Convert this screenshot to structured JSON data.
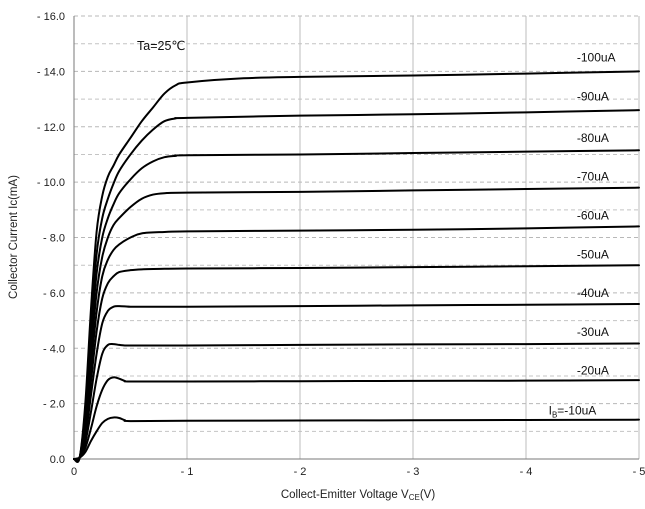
{
  "chart_data": {
    "type": "line",
    "annotation": "Ta=25℃",
    "xlabel": {
      "main": "Collect-Emitter Voltage  V",
      "sub": "CE",
      "tail": "(V)"
    },
    "ylabel": "Collector Current  Ic(mA)",
    "xlim": [
      0,
      -5
    ],
    "ylim": [
      0,
      -16
    ],
    "xticks": [
      {
        "v": 0,
        "label": "0"
      },
      {
        "v": -1,
        "label": "- 1"
      },
      {
        "v": -2,
        "label": "- 2"
      },
      {
        "v": -3,
        "label": "- 3"
      },
      {
        "v": -4,
        "label": "- 4"
      },
      {
        "v": -5,
        "label": "- 5"
      }
    ],
    "yticks": [
      {
        "v": 0,
        "label": "0.0"
      },
      {
        "v": -2,
        "label": "- 2.0"
      },
      {
        "v": -4,
        "label": "- 4.0"
      },
      {
        "v": -6,
        "label": "- 6.0"
      },
      {
        "v": -8,
        "label": "- 8.0"
      },
      {
        "v": -10,
        "label": "- 10.0"
      },
      {
        "v": -12,
        "label": "- 12.0"
      },
      {
        "v": -14,
        "label": "- 14.0"
      },
      {
        "v": -16,
        "label": "- 16.0"
      }
    ],
    "grid": {
      "vertical": "solid",
      "horizontal": "dashed-every-1.0"
    },
    "line_color": "#000000",
    "series": [
      {
        "name": "I_B=-10uA",
        "label_main": "I",
        "label_sub": "B",
        "label_tail": "=-10uA",
        "x": [
          0,
          -0.05,
          -0.1,
          -0.15,
          -0.2,
          -0.25,
          -0.3,
          -0.35,
          -0.4,
          -0.45,
          -0.5,
          -1,
          -2,
          -3,
          -4,
          -5
        ],
        "y": [
          0,
          -0.05,
          -0.25,
          -0.65,
          -1.0,
          -1.3,
          -1.45,
          -1.5,
          -1.48,
          -1.4,
          -1.37,
          -1.38,
          -1.39,
          -1.4,
          -1.41,
          -1.42
        ]
      },
      {
        "name": "-20uA",
        "x": [
          0,
          -0.05,
          -0.1,
          -0.15,
          -0.2,
          -0.25,
          -0.3,
          -0.35,
          -0.4,
          -0.45,
          -0.5,
          -1,
          -2,
          -3,
          -4,
          -5
        ],
        "y": [
          0,
          -0.05,
          -0.4,
          -1.1,
          -1.9,
          -2.5,
          -2.85,
          -2.95,
          -2.9,
          -2.82,
          -2.8,
          -2.8,
          -2.81,
          -2.82,
          -2.83,
          -2.85
        ]
      },
      {
        "name": "-30uA",
        "x": [
          0,
          -0.05,
          -0.1,
          -0.15,
          -0.2,
          -0.25,
          -0.3,
          -0.35,
          -0.4,
          -0.45,
          -0.5,
          -1,
          -2,
          -3,
          -4,
          -5
        ],
        "y": [
          0,
          -0.05,
          -0.6,
          -1.7,
          -2.9,
          -3.8,
          -4.12,
          -4.15,
          -4.12,
          -4.1,
          -4.1,
          -4.1,
          -4.12,
          -4.14,
          -4.15,
          -4.17
        ]
      },
      {
        "name": "-40uA",
        "x": [
          0,
          -0.05,
          -0.1,
          -0.15,
          -0.2,
          -0.25,
          -0.3,
          -0.35,
          -0.4,
          -0.5,
          -0.6,
          -0.8,
          -1,
          -2,
          -3,
          -4,
          -5
        ],
        "y": [
          0,
          -0.05,
          -0.8,
          -2.3,
          -3.8,
          -4.9,
          -5.35,
          -5.5,
          -5.52,
          -5.5,
          -5.5,
          -5.5,
          -5.5,
          -5.52,
          -5.55,
          -5.57,
          -5.6
        ]
      },
      {
        "name": "-50uA",
        "x": [
          0,
          -0.05,
          -0.1,
          -0.15,
          -0.2,
          -0.25,
          -0.3,
          -0.35,
          -0.4,
          -0.5,
          -0.6,
          -0.8,
          -1,
          -2,
          -3,
          -4,
          -5
        ],
        "y": [
          0,
          -0.05,
          -1.0,
          -2.8,
          -4.6,
          -5.8,
          -6.35,
          -6.6,
          -6.75,
          -6.82,
          -6.85,
          -6.87,
          -6.88,
          -6.9,
          -6.93,
          -6.96,
          -7.0
        ]
      },
      {
        "name": "-60uA",
        "x": [
          0,
          -0.05,
          -0.1,
          -0.15,
          -0.2,
          -0.25,
          -0.3,
          -0.35,
          -0.4,
          -0.5,
          -0.6,
          -0.8,
          -1,
          -2,
          -3,
          -4,
          -5
        ],
        "y": [
          0,
          -0.05,
          -1.2,
          -3.3,
          -5.3,
          -6.6,
          -7.2,
          -7.55,
          -7.75,
          -8.0,
          -8.15,
          -8.2,
          -8.22,
          -8.25,
          -8.28,
          -8.33,
          -8.4
        ]
      },
      {
        "name": "-70uA",
        "x": [
          0,
          -0.05,
          -0.1,
          -0.15,
          -0.2,
          -0.25,
          -0.3,
          -0.35,
          -0.4,
          -0.5,
          -0.6,
          -0.7,
          -0.8,
          -1,
          -2,
          -3,
          -4,
          -5
        ],
        "y": [
          0,
          -0.05,
          -1.4,
          -3.8,
          -6.0,
          -7.3,
          -8.0,
          -8.45,
          -8.7,
          -9.1,
          -9.4,
          -9.55,
          -9.6,
          -9.62,
          -9.65,
          -9.7,
          -9.75,
          -9.8
        ]
      },
      {
        "name": "-80uA",
        "x": [
          0,
          -0.05,
          -0.1,
          -0.15,
          -0.2,
          -0.25,
          -0.3,
          -0.35,
          -0.4,
          -0.5,
          -0.6,
          -0.7,
          -0.8,
          -0.9,
          -1,
          -2,
          -3,
          -4,
          -5
        ],
        "y": [
          0,
          -0.05,
          -1.6,
          -4.3,
          -6.7,
          -8.0,
          -8.7,
          -9.2,
          -9.6,
          -10.1,
          -10.5,
          -10.75,
          -10.9,
          -10.95,
          -10.97,
          -11.0,
          -11.05,
          -11.1,
          -11.15
        ]
      },
      {
        "name": "-90uA",
        "x": [
          0,
          -0.05,
          -0.1,
          -0.15,
          -0.2,
          -0.25,
          -0.3,
          -0.35,
          -0.4,
          -0.5,
          -0.6,
          -0.7,
          -0.8,
          -0.9,
          -1,
          -2,
          -3,
          -4,
          -5
        ],
        "y": [
          0,
          -0.05,
          -1.8,
          -4.8,
          -7.4,
          -8.7,
          -9.4,
          -9.95,
          -10.4,
          -11.0,
          -11.5,
          -11.9,
          -12.2,
          -12.3,
          -12.32,
          -12.4,
          -12.45,
          -12.52,
          -12.6
        ]
      },
      {
        "name": "-100uA",
        "x": [
          0,
          -0.05,
          -0.1,
          -0.15,
          -0.2,
          -0.25,
          -0.3,
          -0.35,
          -0.4,
          -0.5,
          -0.6,
          -0.7,
          -0.8,
          -0.9,
          -1,
          -1.5,
          -2,
          -3,
          -4,
          -5
        ],
        "y": [
          0,
          -0.05,
          -2.0,
          -5.4,
          -8.2,
          -9.5,
          -10.2,
          -10.6,
          -11.0,
          -11.6,
          -12.2,
          -12.7,
          -13.2,
          -13.5,
          -13.6,
          -13.75,
          -13.8,
          -13.85,
          -13.92,
          -14.0
        ]
      }
    ],
    "curve_labels": [
      {
        "series": 9,
        "x": -4.45,
        "y": -14.35
      },
      {
        "series": 8,
        "x": -4.45,
        "y": -12.95
      },
      {
        "series": 7,
        "x": -4.45,
        "y": -11.45
      },
      {
        "series": 6,
        "x": -4.45,
        "y": -10.05
      },
      {
        "series": 5,
        "x": -4.45,
        "y": -8.65
      },
      {
        "series": 4,
        "x": -4.45,
        "y": -7.25
      },
      {
        "series": 3,
        "x": -4.45,
        "y": -5.85
      },
      {
        "series": 2,
        "x": -4.45,
        "y": -4.45
      },
      {
        "series": 1,
        "x": -4.45,
        "y": -3.05
      },
      {
        "series": 0,
        "x": -4.2,
        "y": -1.6
      }
    ]
  }
}
